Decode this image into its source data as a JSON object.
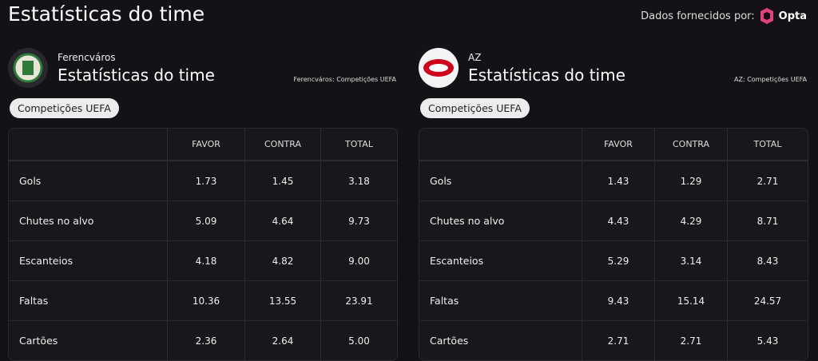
{
  "header": {
    "title": "Estatísticas do time",
    "source_label": "Dados fornecidos por:",
    "source_brand": "Opta"
  },
  "panels": [
    {
      "team": "Ferencváros",
      "title": "Estatísticas do time",
      "competition_note": "Ferencváros: Competições UEFA",
      "filter": "Competições UEFA",
      "table": {
        "columns": [
          "FAVOR",
          "CONTRA",
          "TOTAL"
        ],
        "rows": [
          [
            "Gols",
            "1.73",
            "1.45",
            "3.18"
          ],
          [
            "Chutes no alvo",
            "5.09",
            "4.64",
            "9.73"
          ],
          [
            "Escanteios",
            "4.18",
            "4.82",
            "9.00"
          ],
          [
            "Faltas",
            "10.36",
            "13.55",
            "23.91"
          ],
          [
            "Cartões",
            "2.36",
            "2.64",
            "5.00"
          ]
        ]
      }
    },
    {
      "team": "AZ",
      "title": "Estatísticas do time",
      "competition_note": "AZ: Competições UEFA",
      "filter": "Competições UEFA",
      "table": {
        "columns": [
          "FAVOR",
          "CONTRA",
          "TOTAL"
        ],
        "rows": [
          [
            "Gols",
            "1.43",
            "1.29",
            "2.71"
          ],
          [
            "Chutes no alvo",
            "4.43",
            "4.29",
            "8.71"
          ],
          [
            "Escanteios",
            "5.29",
            "3.14",
            "8.43"
          ],
          [
            "Faltas",
            "9.43",
            "15.14",
            "24.57"
          ],
          [
            "Cartões",
            "2.71",
            "2.71",
            "5.43"
          ]
        ]
      }
    }
  ]
}
